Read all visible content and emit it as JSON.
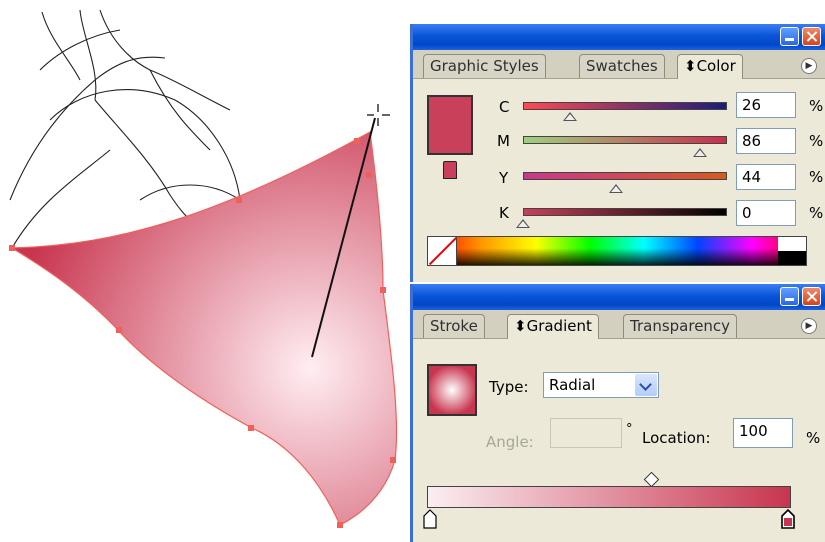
{
  "artwork": {
    "gradient_fill": {
      "center_color": "#ffeef2",
      "edge_color": "#c8354f"
    },
    "anchor_color": "#f0605a"
  },
  "color_panel": {
    "tabs": [
      "Graphic Styles",
      "Swatches",
      "⬍Color"
    ],
    "active_tab": "⬍Color",
    "menu_icon": "panel-menu-icon",
    "fill_color": "#c8405a",
    "channels": [
      {
        "label": "C",
        "value": "26",
        "unit": "%",
        "ramp": [
          "#ff4a55",
          "#1c1c78"
        ]
      },
      {
        "label": "M",
        "value": "86",
        "unit": "%",
        "ramp": [
          "#9fd07e",
          "#cc2d4a"
        ]
      },
      {
        "label": "Y",
        "value": "44",
        "unit": "%",
        "ramp": [
          "#c8388c",
          "#d65a20"
        ]
      },
      {
        "label": "K",
        "value": "0",
        "unit": "%",
        "ramp": [
          "#c8405a",
          "#000000"
        ]
      }
    ]
  },
  "gradient_panel": {
    "tabs": [
      "Stroke",
      "⬍Gradient",
      "Transparency"
    ],
    "active_tab": "⬍Gradient",
    "type_label": "Type:",
    "type_value": "Radial",
    "angle_label": "Angle:",
    "angle_value": "",
    "degree_symbol": "°",
    "location_label": "Location:",
    "location_value": "100",
    "location_unit": "%",
    "stops": [
      {
        "color": "#ffffff"
      },
      {
        "color": "#c8354f"
      }
    ],
    "bar_colors": [
      "#fbeef2",
      "#c8354f"
    ]
  }
}
